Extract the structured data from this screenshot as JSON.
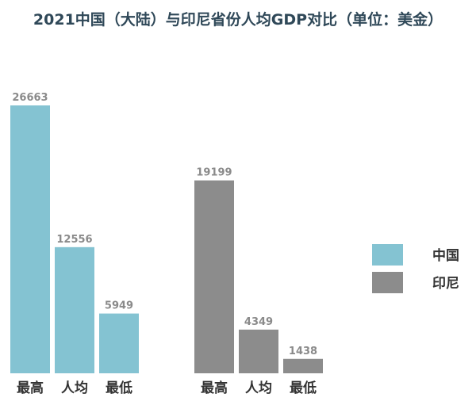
{
  "chart_data": {
    "type": "bar",
    "title": "2021中国（大陆）与印尼省份人均GDP对比（单位：美金）",
    "xlabel": "",
    "ylabel": "",
    "ylim": [
      0,
      26663
    ],
    "grid": false,
    "legend_position": "right",
    "groups": [
      {
        "series": "中国",
        "categories": [
          "最高",
          "人均",
          "最低"
        ],
        "values": [
          26663,
          12556,
          5949
        ]
      },
      {
        "series": "印尼",
        "categories": [
          "最高",
          "人均",
          "最低"
        ],
        "values": [
          19199,
          4349,
          1438
        ]
      }
    ],
    "series": [
      {
        "name": "中国",
        "color": "#84c3d2"
      },
      {
        "name": "印尼",
        "color": "#8c8c8c"
      }
    ],
    "title_color": "#2f4858"
  }
}
